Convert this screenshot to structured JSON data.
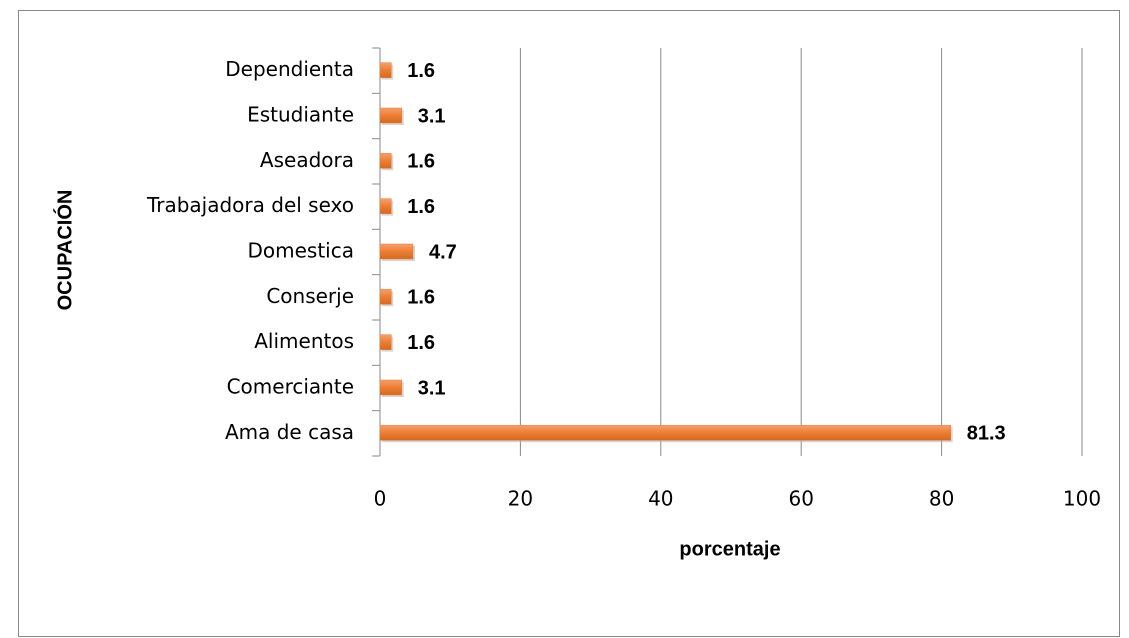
{
  "chart_data": {
    "type": "barh",
    "xlabel": "porcentaje",
    "ylabel": "OCUPACIÓN",
    "categories": [
      "Dependienta",
      "Estudiante",
      "Aseadora",
      "Trabajadora del sexo",
      "Domestica",
      "Conserje",
      "Alimentos",
      "Comerciante",
      "Ama de casa"
    ],
    "values": [
      1.6,
      3.1,
      1.6,
      1.6,
      4.7,
      1.6,
      1.6,
      3.1,
      81.3
    ],
    "color": "#ed7d31",
    "xlim": [
      0,
      100
    ],
    "xticks": [
      0,
      20,
      40,
      60,
      80,
      100
    ],
    "grid": true
  }
}
